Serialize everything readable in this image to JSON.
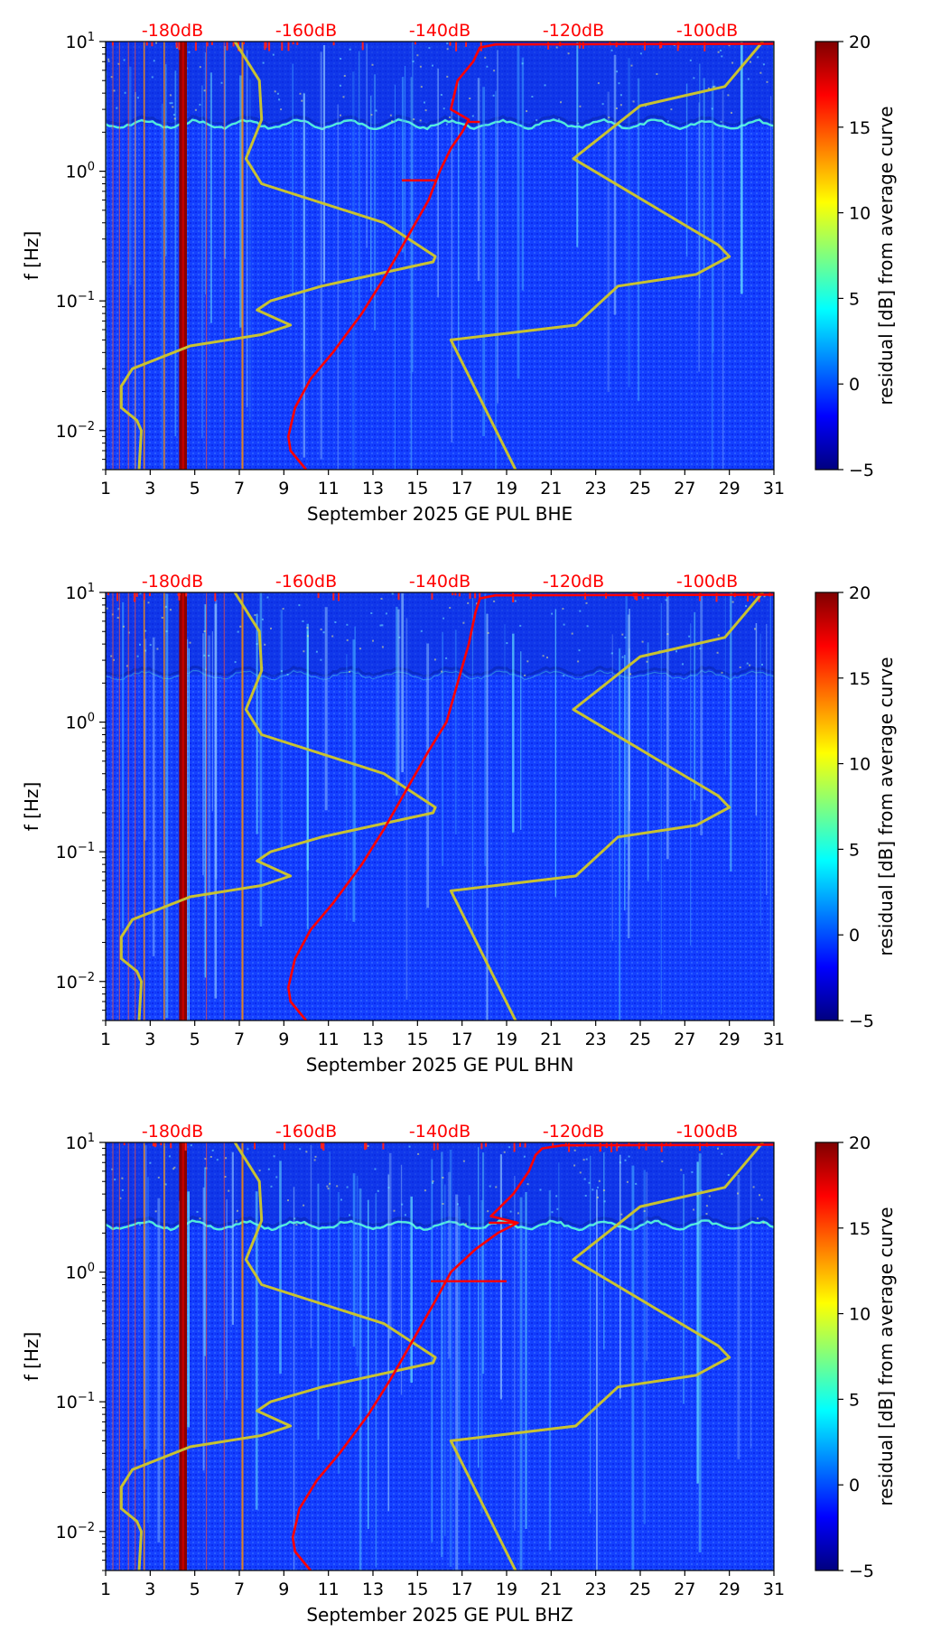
{
  "colors": {
    "background": "#1a3fff",
    "nlnm_nhnm": "#c8c231",
    "median": "#ff0000",
    "db_label": "#ff0000",
    "colormap": [
      "#00007f",
      "#0000ff",
      "#007fff",
      "#00ffff",
      "#7fff7f",
      "#ffff00",
      "#ff7f00",
      "#ff0000",
      "#7f0000"
    ]
  },
  "colorbar": {
    "label": "residual [dB] from average curve",
    "ticks": [
      "20",
      "15",
      "10",
      "5",
      "0",
      "−5"
    ],
    "tick_values": [
      20,
      15,
      10,
      5,
      0,
      -5
    ],
    "range": [
      -5,
      20
    ]
  },
  "chart_data": [
    {
      "type": "heatmap",
      "title": "",
      "xlabel": "September 2025 GE PUL  BHE",
      "ylabel": "f [Hz]",
      "xlim": [
        1,
        31
      ],
      "ylim": [
        0.005,
        10
      ],
      "yscale": "log",
      "x_ticks": [
        "1",
        "3",
        "5",
        "7",
        "9",
        "11",
        "13",
        "15",
        "17",
        "19",
        "21",
        "23",
        "25",
        "27",
        "29",
        "31"
      ],
      "y_ticks": [
        {
          "base": "10",
          "exp": "1",
          "value": 10
        },
        {
          "base": "10",
          "exp": "0",
          "value": 1
        },
        {
          "base": "10",
          "exp": "−1",
          "value": 0.1
        },
        {
          "base": "10",
          "exp": "−2",
          "value": 0.01
        }
      ],
      "db_labels": [
        {
          "text": "-180dB",
          "x": 4.0
        },
        {
          "text": "-160dB",
          "x": 10.0
        },
        {
          "text": "-140dB",
          "x": 16.0
        },
        {
          "text": "-120dB",
          "x": 22.0
        },
        {
          "text": "-100dB",
          "x": 28.0
        }
      ],
      "series": [
        {
          "name": "NLNM",
          "points": [
            [
              2.5,
              0.005
            ],
            [
              2.6,
              0.01
            ],
            [
              2.4,
              0.012
            ],
            [
              1.7,
              0.015
            ],
            [
              1.7,
              0.022
            ],
            [
              2.2,
              0.03
            ],
            [
              4.8,
              0.045
            ],
            [
              8.0,
              0.055
            ],
            [
              9.3,
              0.065
            ],
            [
              7.8,
              0.085
            ],
            [
              8.4,
              0.1
            ],
            [
              10.7,
              0.13
            ],
            [
              15.7,
              0.2
            ],
            [
              15.8,
              0.22
            ],
            [
              13.5,
              0.4
            ],
            [
              8.0,
              0.8
            ],
            [
              7.3,
              1.25
            ],
            [
              8.0,
              2.5
            ],
            [
              7.9,
              5
            ],
            [
              6.8,
              10
            ]
          ]
        },
        {
          "name": "NHNM",
          "points": [
            [
              19.4,
              0.005
            ],
            [
              16.5,
              0.05
            ],
            [
              22.1,
              0.065
            ],
            [
              24.0,
              0.13
            ],
            [
              27.5,
              0.16
            ],
            [
              29.0,
              0.22
            ],
            [
              28.5,
              0.27
            ],
            [
              22.0,
              1.25
            ],
            [
              25.0,
              3.2
            ],
            [
              28.8,
              4.5
            ],
            [
              30.5,
              10
            ]
          ]
        },
        {
          "name": "median",
          "points": [
            [
              10.0,
              0.005
            ],
            [
              9.3,
              0.007
            ],
            [
              9.2,
              0.009
            ],
            [
              9.5,
              0.015
            ],
            [
              10.2,
              0.025
            ],
            [
              11.2,
              0.04
            ],
            [
              12.5,
              0.08
            ],
            [
              13.5,
              0.15
            ],
            [
              14.5,
              0.3
            ],
            [
              15.5,
              0.6
            ],
            [
              16.0,
              1.0
            ],
            [
              16.5,
              1.5
            ],
            [
              17.0,
              2.0
            ],
            [
              17.3,
              2.5
            ],
            [
              16.5,
              3
            ],
            [
              16.8,
              5
            ],
            [
              17.5,
              7
            ],
            [
              17.8,
              9
            ],
            [
              18.5,
              9.5
            ],
            [
              31,
              9.6
            ]
          ]
        }
      ],
      "notable_features": {
        "band_hz": 2.3,
        "spikes": [
          {
            "x": 14.3,
            "f": 0.85,
            "x2": 15.8
          },
          {
            "x": 17.3,
            "f": 2.4,
            "x2": 17.8
          }
        ],
        "hot_columns": [
          {
            "x": 4.3,
            "w": 0.35
          },
          {
            "x": 7.1,
            "w": 0.08
          },
          {
            "x": 2.7,
            "w": 0.05
          },
          {
            "x": 3.6,
            "w": 0.05
          }
        ]
      }
    },
    {
      "type": "heatmap",
      "title": "",
      "xlabel": "September 2025 GE PUL  BHN",
      "ylabel": "f [Hz]",
      "xlim": [
        1,
        31
      ],
      "ylim": [
        0.005,
        10
      ],
      "yscale": "log",
      "x_ticks": [
        "1",
        "3",
        "5",
        "7",
        "9",
        "11",
        "13",
        "15",
        "17",
        "19",
        "21",
        "23",
        "25",
        "27",
        "29",
        "31"
      ],
      "y_ticks": [
        {
          "base": "10",
          "exp": "1",
          "value": 10
        },
        {
          "base": "10",
          "exp": "0",
          "value": 1
        },
        {
          "base": "10",
          "exp": "−1",
          "value": 0.1
        },
        {
          "base": "10",
          "exp": "−2",
          "value": 0.01
        }
      ],
      "db_labels": [
        {
          "text": "-180dB",
          "x": 4.0
        },
        {
          "text": "-160dB",
          "x": 10.0
        },
        {
          "text": "-140dB",
          "x": 16.0
        },
        {
          "text": "-120dB",
          "x": 22.0
        },
        {
          "text": "-100dB",
          "x": 28.0
        }
      ],
      "series": [
        {
          "name": "NLNM",
          "points": [
            [
              2.5,
              0.005
            ],
            [
              2.6,
              0.01
            ],
            [
              2.4,
              0.012
            ],
            [
              1.7,
              0.015
            ],
            [
              1.7,
              0.022
            ],
            [
              2.2,
              0.03
            ],
            [
              4.8,
              0.045
            ],
            [
              8.0,
              0.055
            ],
            [
              9.3,
              0.065
            ],
            [
              7.8,
              0.085
            ],
            [
              8.4,
              0.1
            ],
            [
              10.7,
              0.13
            ],
            [
              15.7,
              0.2
            ],
            [
              15.8,
              0.22
            ],
            [
              13.5,
              0.4
            ],
            [
              8.0,
              0.8
            ],
            [
              7.3,
              1.25
            ],
            [
              8.0,
              2.5
            ],
            [
              7.9,
              5
            ],
            [
              6.8,
              10
            ]
          ]
        },
        {
          "name": "NHNM",
          "points": [
            [
              19.4,
              0.005
            ],
            [
              16.5,
              0.05
            ],
            [
              22.1,
              0.065
            ],
            [
              24.0,
              0.13
            ],
            [
              27.5,
              0.16
            ],
            [
              29.0,
              0.22
            ],
            [
              28.5,
              0.27
            ],
            [
              22.0,
              1.25
            ],
            [
              25.0,
              3.2
            ],
            [
              28.8,
              4.5
            ],
            [
              30.5,
              10
            ]
          ]
        },
        {
          "name": "median",
          "points": [
            [
              10.0,
              0.005
            ],
            [
              9.3,
              0.007
            ],
            [
              9.2,
              0.009
            ],
            [
              9.5,
              0.015
            ],
            [
              10.2,
              0.025
            ],
            [
              11.2,
              0.04
            ],
            [
              12.5,
              0.08
            ],
            [
              13.5,
              0.15
            ],
            [
              14.5,
              0.3
            ],
            [
              15.5,
              0.6
            ],
            [
              16.3,
              1.0
            ],
            [
              16.8,
              2.0
            ],
            [
              17.3,
              4.0
            ],
            [
              17.6,
              7.0
            ],
            [
              17.8,
              9.0
            ],
            [
              18.5,
              9.5
            ],
            [
              31,
              9.6
            ]
          ]
        }
      ],
      "notable_features": {
        "band_hz": 2.3,
        "spikes": [],
        "hot_columns": [
          {
            "x": 4.3,
            "w": 0.35
          },
          {
            "x": 7.1,
            "w": 0.08
          },
          {
            "x": 2.7,
            "w": 0.05
          },
          {
            "x": 3.6,
            "w": 0.05
          }
        ]
      }
    },
    {
      "type": "heatmap",
      "title": "",
      "xlabel": "September 2025 GE PUL  BHZ",
      "ylabel": "f [Hz]",
      "xlim": [
        1,
        31
      ],
      "ylim": [
        0.005,
        10
      ],
      "yscale": "log",
      "x_ticks": [
        "1",
        "3",
        "5",
        "7",
        "9",
        "11",
        "13",
        "15",
        "17",
        "19",
        "21",
        "23",
        "25",
        "27",
        "29",
        "31"
      ],
      "y_ticks": [
        {
          "base": "10",
          "exp": "1",
          "value": 10
        },
        {
          "base": "10",
          "exp": "0",
          "value": 1
        },
        {
          "base": "10",
          "exp": "−1",
          "value": 0.1
        },
        {
          "base": "10",
          "exp": "−2",
          "value": 0.01
        }
      ],
      "db_labels": [
        {
          "text": "-180dB",
          "x": 4.0
        },
        {
          "text": "-160dB",
          "x": 10.0
        },
        {
          "text": "-140dB",
          "x": 16.0
        },
        {
          "text": "-120dB",
          "x": 22.0
        },
        {
          "text": "-100dB",
          "x": 28.0
        }
      ],
      "series": [
        {
          "name": "NLNM",
          "points": [
            [
              2.5,
              0.005
            ],
            [
              2.6,
              0.01
            ],
            [
              2.4,
              0.012
            ],
            [
              1.7,
              0.015
            ],
            [
              1.7,
              0.022
            ],
            [
              2.2,
              0.03
            ],
            [
              4.8,
              0.045
            ],
            [
              8.0,
              0.055
            ],
            [
              9.3,
              0.065
            ],
            [
              7.8,
              0.085
            ],
            [
              8.4,
              0.1
            ],
            [
              10.7,
              0.13
            ],
            [
              15.7,
              0.2
            ],
            [
              15.8,
              0.22
            ],
            [
              13.5,
              0.4
            ],
            [
              8.0,
              0.8
            ],
            [
              7.3,
              1.25
            ],
            [
              8.0,
              2.5
            ],
            [
              7.9,
              5
            ],
            [
              6.8,
              10
            ]
          ]
        },
        {
          "name": "NHNM",
          "points": [
            [
              19.4,
              0.005
            ],
            [
              16.5,
              0.05
            ],
            [
              22.1,
              0.065
            ],
            [
              24.0,
              0.13
            ],
            [
              27.5,
              0.16
            ],
            [
              29.0,
              0.22
            ],
            [
              28.5,
              0.27
            ],
            [
              22.0,
              1.25
            ],
            [
              25.0,
              3.2
            ],
            [
              28.8,
              4.5
            ],
            [
              30.5,
              10
            ]
          ]
        },
        {
          "name": "median",
          "points": [
            [
              10.2,
              0.005
            ],
            [
              9.5,
              0.007
            ],
            [
              9.4,
              0.009
            ],
            [
              9.7,
              0.015
            ],
            [
              10.5,
              0.025
            ],
            [
              11.5,
              0.04
            ],
            [
              12.8,
              0.08
            ],
            [
              13.8,
              0.15
            ],
            [
              14.8,
              0.3
            ],
            [
              15.8,
              0.6
            ],
            [
              16.5,
              1.0
            ],
            [
              17.6,
              1.5
            ],
            [
              18.6,
              2.0
            ],
            [
              19.5,
              2.4
            ],
            [
              18.3,
              2.7
            ],
            [
              19.3,
              4.0
            ],
            [
              20.0,
              6.0
            ],
            [
              20.3,
              8.0
            ],
            [
              20.6,
              9.0
            ],
            [
              21.5,
              9.5
            ],
            [
              31,
              9.6
            ]
          ]
        }
      ],
      "notable_features": {
        "band_hz": 2.3,
        "spikes": [
          {
            "x": 15.6,
            "f": 0.85,
            "x2": 19.0
          },
          {
            "x": 18.2,
            "f": 2.4,
            "x2": 19.5
          }
        ],
        "hot_columns": [
          {
            "x": 4.3,
            "w": 0.35
          },
          {
            "x": 7.1,
            "w": 0.08
          },
          {
            "x": 2.7,
            "w": 0.05
          },
          {
            "x": 3.6,
            "w": 0.05
          }
        ]
      }
    }
  ]
}
